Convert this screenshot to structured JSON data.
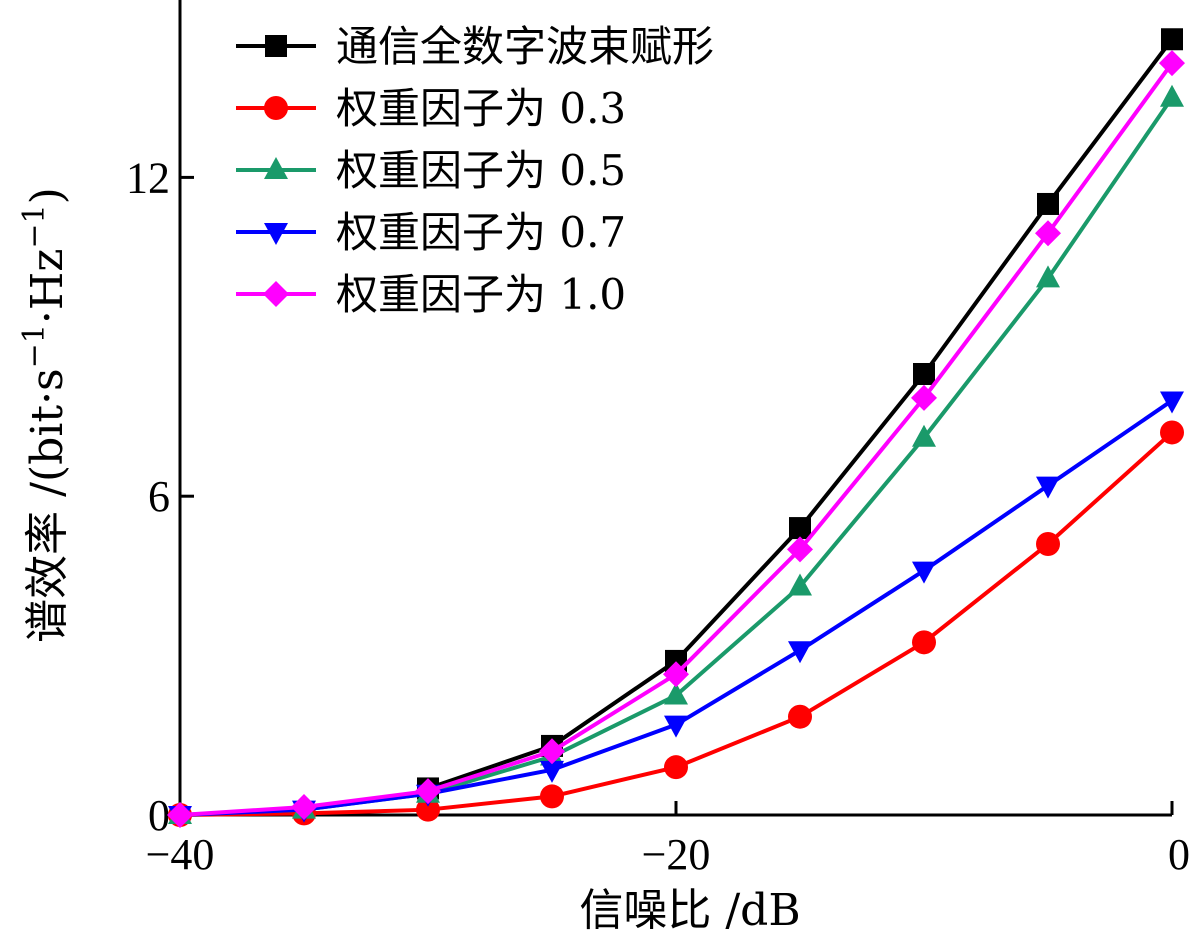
{
  "chart_data": {
    "type": "line",
    "xlabel": "信噪比 /dB",
    "ylabel": {
      "prefix": "谱效率 /(bit·s",
      "sup1": "−1",
      "mid": "·Hz",
      "sup2": "−1",
      "suffix": ")"
    },
    "xlim": [
      -40,
      0
    ],
    "ylim": [
      0,
      15
    ],
    "xticks": [
      {
        "value": -40,
        "label": "−40"
      },
      {
        "value": -20,
        "label": "−20"
      },
      {
        "value": 0,
        "label": "0"
      }
    ],
    "yticks": [
      {
        "value": 0,
        "label": "0"
      },
      {
        "value": 6,
        "label": "6"
      },
      {
        "value": 12,
        "label": "12"
      }
    ],
    "legend_position": "top-left",
    "series": [
      {
        "name": "通信全数字波束赋形",
        "color": "#000000",
        "marker": "square",
        "x": [
          -30,
          -25,
          -20,
          -15,
          -10,
          -5,
          0
        ],
        "y": [
          0.5,
          1.3,
          2.9,
          5.4,
          8.3,
          11.5,
          14.6
        ]
      },
      {
        "name": "权重因子为 0.3",
        "color": "#ff0000",
        "marker": "circle",
        "x": [
          -40,
          -35,
          -30,
          -25,
          -20,
          -15,
          -10,
          -5,
          0
        ],
        "y": [
          0.0,
          0.03,
          0.1,
          0.35,
          0.9,
          1.85,
          3.25,
          5.1,
          7.2
        ]
      },
      {
        "name": "权重因子为 0.5",
        "color": "#1a9a6a",
        "marker": "triangle-up",
        "x": [
          -40,
          -35,
          -30,
          -25,
          -20,
          -15,
          -10,
          -5,
          0
        ],
        "y": [
          0.0,
          0.1,
          0.4,
          1.1,
          2.25,
          4.3,
          7.1,
          10.1,
          13.5
        ]
      },
      {
        "name": "权重因子为 0.7",
        "color": "#0000ff",
        "marker": "triangle-down",
        "x": [
          -40,
          -35,
          -30,
          -25,
          -20,
          -15,
          -10,
          -5,
          0
        ],
        "y": [
          0.0,
          0.1,
          0.4,
          0.85,
          1.7,
          3.1,
          4.6,
          6.2,
          7.8
        ]
      },
      {
        "name": "权重因子为 1.0",
        "color": "#ff00ff",
        "marker": "diamond",
        "x": [
          -40,
          -35,
          -30,
          -25,
          -20,
          -15,
          -10,
          -5,
          0
        ],
        "y": [
          0.0,
          0.15,
          0.45,
          1.2,
          2.65,
          5.0,
          7.85,
          10.95,
          14.15
        ]
      }
    ]
  }
}
